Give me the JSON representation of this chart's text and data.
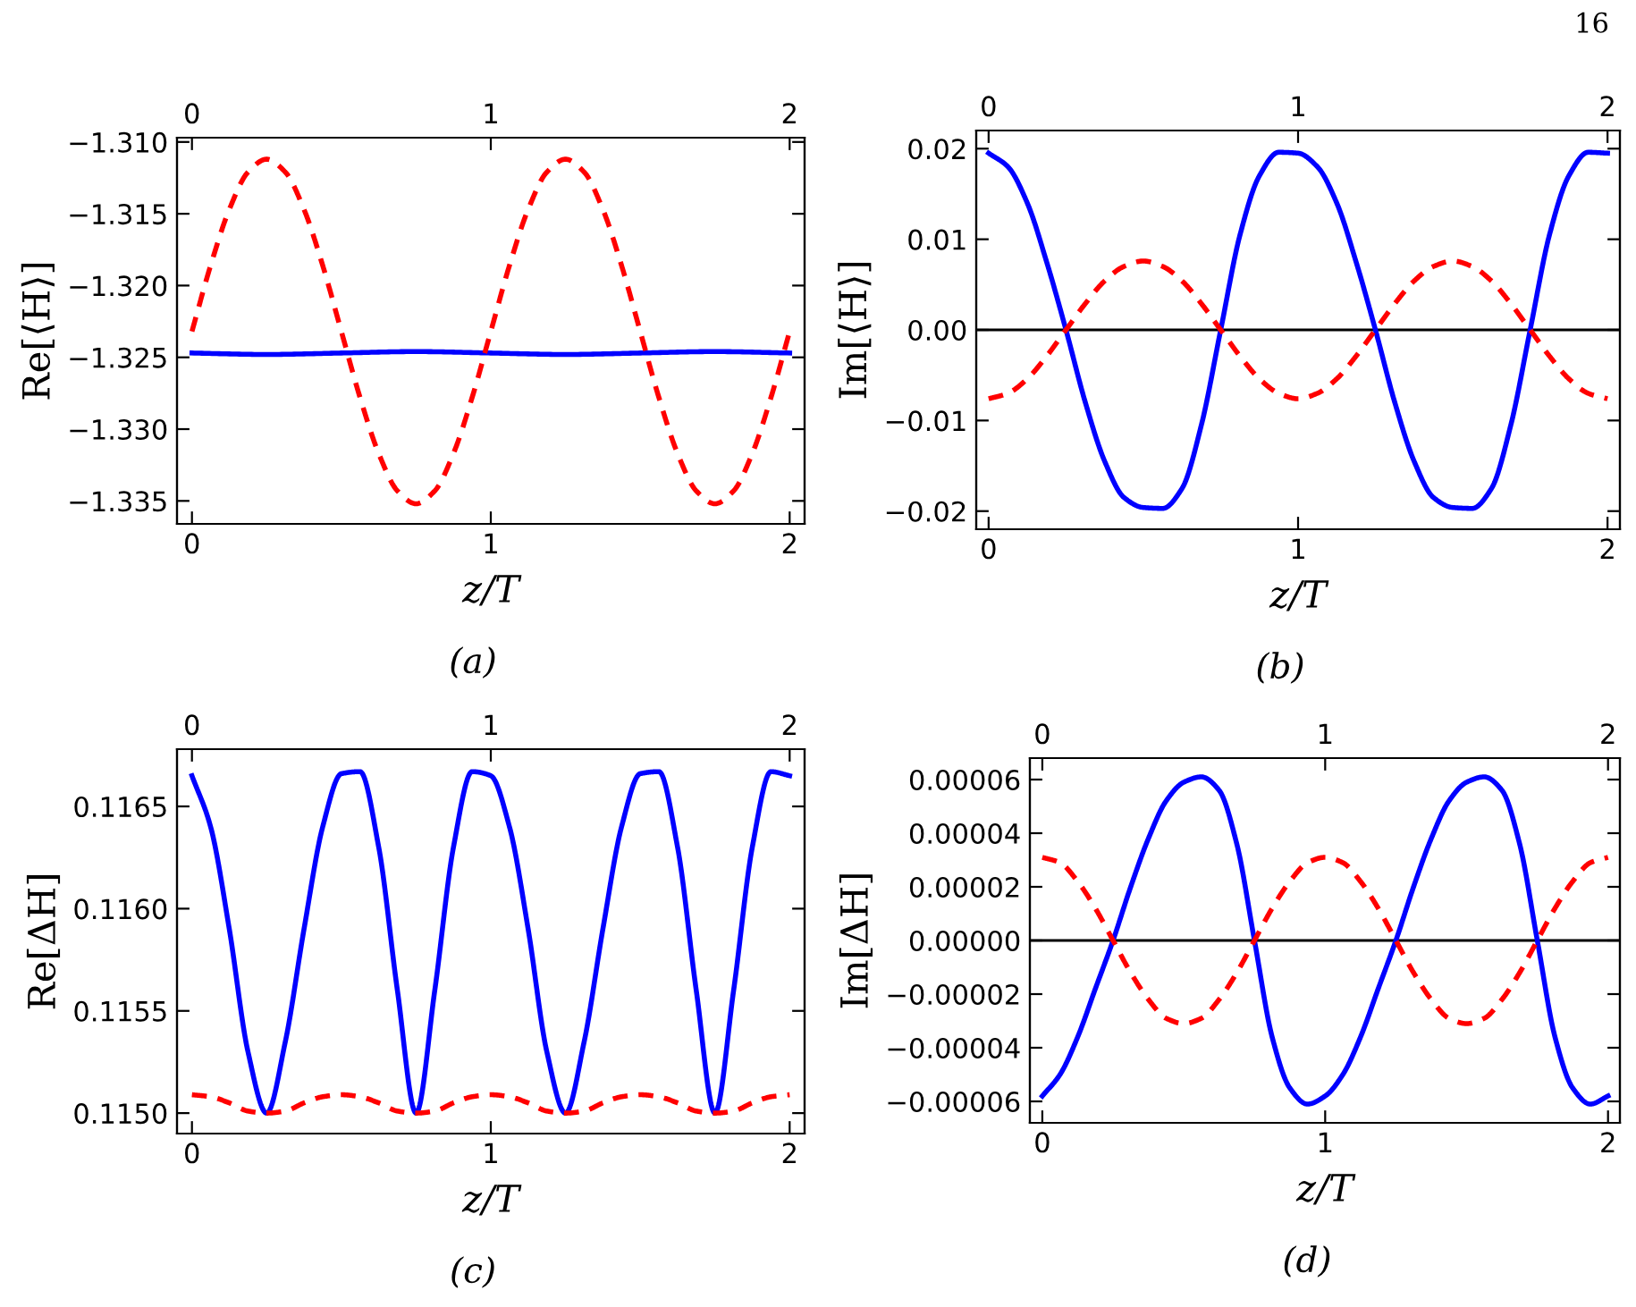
{
  "chart_data": [
    {
      "type": "line",
      "xlabel": "z/T",
      "ylabel": "Re[⟨H⟩]",
      "annotations": [
        "(a)",
        "16"
      ],
      "xlim": [
        -0.05,
        2.05
      ],
      "xticks": [
        0,
        1,
        2
      ],
      "x2lim": [
        -0.05,
        2.05
      ],
      "x2ticks": [
        0,
        1,
        2
      ],
      "ylim": [
        -1.3366,
        -1.3097
      ],
      "yticks": [
        {
          "value": -1.335,
          "label": "−1.335"
        },
        {
          "value": -1.33,
          "label": "−1.330"
        },
        {
          "value": -1.325,
          "label": "−1.325"
        },
        {
          "value": -1.32,
          "label": "−1.320"
        },
        {
          "value": -1.315,
          "label": "−1.315"
        },
        {
          "value": -1.31,
          "label": "−1.310"
        }
      ],
      "grid": false,
      "legend": false,
      "series": [
        {
          "color": "#0000ff",
          "line_style": "solid",
          "x": [
            0,
            0.25,
            0.5,
            0.75,
            1,
            1.25,
            1.5,
            1.75,
            2
          ],
          "values": [
            -1.3247,
            -1.3248,
            -1.3247,
            -1.3246,
            -1.3247,
            -1.3248,
            -1.3247,
            -1.3246,
            -1.3247
          ]
        },
        {
          "color": "#ff0000",
          "line_style": "dashed",
          "x": [
            0,
            0.0625,
            0.125,
            0.1875,
            0.25,
            0.3125,
            0.375,
            0.4375,
            0.5,
            0.5625,
            0.625,
            0.6875,
            0.75,
            0.8125,
            0.875,
            0.9375,
            1,
            1.0625,
            1.125,
            1.1875,
            1.25,
            1.3125,
            1.375,
            1.4375,
            1.5,
            1.5625,
            1.625,
            1.6875,
            1.75,
            1.8125,
            1.875,
            1.9375,
            2
          ],
          "values": [
            -1.3232,
            -1.3186,
            -1.3147,
            -1.3121,
            -1.3112,
            -1.3121,
            -1.3147,
            -1.3186,
            -1.3232,
            -1.3278,
            -1.3317,
            -1.3343,
            -1.3352,
            -1.3343,
            -1.3317,
            -1.3278,
            -1.3232,
            -1.3186,
            -1.3147,
            -1.3121,
            -1.3112,
            -1.3121,
            -1.3147,
            -1.3186,
            -1.3232,
            -1.3278,
            -1.3317,
            -1.3343,
            -1.3352,
            -1.3343,
            -1.3317,
            -1.3278,
            -1.3232
          ]
        }
      ]
    },
    {
      "type": "line",
      "xlabel": "z/T",
      "ylabel": "Im[⟨H⟩]",
      "annotations": [
        "(b)"
      ],
      "xlim": [
        -0.04,
        2.04
      ],
      "xticks": [
        0,
        1,
        2
      ],
      "x2lim": [
        -0.04,
        2.04
      ],
      "x2ticks": [
        0,
        1,
        2
      ],
      "ylim": [
        -0.022,
        0.022
      ],
      "yticks": [
        {
          "value": -0.02,
          "label": "−0.02"
        },
        {
          "value": -0.01,
          "label": "−0.01"
        },
        {
          "value": 0,
          "label": "0.00"
        },
        {
          "value": 0.01,
          "label": "0.01"
        },
        {
          "value": 0.02,
          "label": "0.02"
        }
      ],
      "grid": false,
      "legend": false,
      "ref_lines": [
        {
          "axis": "y",
          "value": 0,
          "color": "#000000"
        }
      ],
      "series": [
        {
          "color": "#0000ff",
          "line_style": "solid",
          "x": [
            0,
            0.0625,
            0.125,
            0.1875,
            0.25,
            0.3125,
            0.375,
            0.4375,
            0.5,
            0.5625,
            0.625,
            0.6875,
            0.75,
            0.8125,
            0.875,
            0.9375,
            1,
            1.0625,
            1.125,
            1.1875,
            1.25,
            1.3125,
            1.375,
            1.4375,
            1.5,
            1.5625,
            1.625,
            1.6875,
            1.75,
            1.8125,
            1.875,
            1.9375,
            2
          ],
          "values": [
            0.0195,
            0.018,
            0.014,
            0.0075,
            0,
            -0.008,
            -0.0145,
            -0.0185,
            -0.0196,
            -0.0197,
            -0.0175,
            -0.0105,
            0,
            0.0105,
            0.017,
            0.0196,
            0.0195,
            0.018,
            0.014,
            0.0075,
            0,
            -0.008,
            -0.0145,
            -0.0185,
            -0.0196,
            -0.0197,
            -0.0175,
            -0.0105,
            0,
            0.0105,
            0.017,
            0.0196,
            0.0195
          ]
        },
        {
          "color": "#ff0000",
          "line_style": "dashed",
          "x": [
            0,
            0.0625,
            0.125,
            0.1875,
            0.25,
            0.3125,
            0.375,
            0.4375,
            0.5,
            0.5625,
            0.625,
            0.6875,
            0.75,
            0.8125,
            0.875,
            0.9375,
            1,
            1.0625,
            1.125,
            1.1875,
            1.25,
            1.3125,
            1.375,
            1.4375,
            1.5,
            1.5625,
            1.625,
            1.6875,
            1.75,
            1.8125,
            1.875,
            1.9375,
            2
          ],
          "values": [
            -0.0076,
            -0.007,
            -0.0054,
            -0.0029,
            0,
            0.0029,
            0.0054,
            0.007,
            0.0076,
            0.007,
            0.0054,
            0.0029,
            0,
            -0.0029,
            -0.0054,
            -0.007,
            -0.0076,
            -0.007,
            -0.0054,
            -0.0029,
            0,
            0.0029,
            0.0054,
            0.007,
            0.0076,
            0.007,
            0.0054,
            0.0029,
            0,
            -0.0029,
            -0.0054,
            -0.007,
            -0.0076
          ]
        }
      ]
    },
    {
      "type": "line",
      "xlabel": "z/T",
      "ylabel": "Re[ΔH]",
      "annotations": [
        "(c)"
      ],
      "xlim": [
        -0.05,
        2.05
      ],
      "xticks": [
        0,
        1,
        2
      ],
      "x2lim": [
        -0.05,
        2.05
      ],
      "x2ticks": [
        0,
        1,
        2
      ],
      "ylim": [
        0.1149,
        0.11678
      ],
      "yticks": [
        {
          "value": 0.115,
          "label": "0.1150"
        },
        {
          "value": 0.1155,
          "label": "0.1155"
        },
        {
          "value": 0.116,
          "label": "0.1160"
        },
        {
          "value": 0.1165,
          "label": "0.1165"
        }
      ],
      "grid": false,
      "legend": false,
      "series": [
        {
          "color": "#0000ff",
          "line_style": "solid",
          "x": [
            0,
            0.0625,
            0.125,
            0.1875,
            0.25,
            0.3125,
            0.375,
            0.4375,
            0.5,
            0.5625,
            0.625,
            0.6875,
            0.75,
            0.8125,
            0.875,
            0.9375,
            1,
            1.0625,
            1.125,
            1.1875,
            1.25,
            1.3125,
            1.375,
            1.4375,
            1.5,
            1.5625,
            1.625,
            1.6875,
            1.75,
            1.8125,
            1.875,
            1.9375,
            2
          ],
          "values": [
            0.11665,
            0.1164,
            0.1159,
            0.1153,
            0.115,
            0.11535,
            0.1159,
            0.1164,
            0.11666,
            0.11667,
            0.1163,
            0.1156,
            0.115,
            0.1156,
            0.1163,
            0.11667,
            0.11665,
            0.1164,
            0.1159,
            0.1153,
            0.115,
            0.11535,
            0.1159,
            0.1164,
            0.11666,
            0.11667,
            0.1163,
            0.1156,
            0.115,
            0.1156,
            0.1163,
            0.11667,
            0.11665
          ]
        },
        {
          "color": "#ff0000",
          "line_style": "dashed",
          "x": [
            0,
            0.0625,
            0.125,
            0.1875,
            0.25,
            0.3125,
            0.375,
            0.4375,
            0.5,
            0.5625,
            0.625,
            0.6875,
            0.75,
            0.8125,
            0.875,
            0.9375,
            1,
            1.0625,
            1.125,
            1.1875,
            1.25,
            1.3125,
            1.375,
            1.4375,
            1.5,
            1.5625,
            1.625,
            1.6875,
            1.75,
            1.8125,
            1.875,
            1.9375,
            2
          ],
          "values": [
            0.11509,
            0.11508,
            0.11505,
            0.11501,
            0.115,
            0.11501,
            0.11505,
            0.11508,
            0.11509,
            0.11508,
            0.11505,
            0.11501,
            0.115,
            0.11501,
            0.11505,
            0.11508,
            0.11509,
            0.11508,
            0.11505,
            0.11501,
            0.115,
            0.11501,
            0.11505,
            0.11508,
            0.11509,
            0.11508,
            0.11505,
            0.11501,
            0.115,
            0.11501,
            0.11505,
            0.11508,
            0.11509
          ]
        }
      ]
    },
    {
      "type": "line",
      "xlabel": "z/T",
      "ylabel": "Im[ΔH]",
      "annotations": [
        "(d)"
      ],
      "xlim": [
        -0.044,
        2.042
      ],
      "xticks": [
        0,
        1,
        2
      ],
      "x2lim": [
        -0.044,
        2.042
      ],
      "x2ticks": [
        0,
        1,
        2
      ],
      "ylim": [
        -6.8e-05,
        6.8e-05
      ],
      "yticks": [
        {
          "value": -6e-05,
          "label": "−0.00006"
        },
        {
          "value": -4e-05,
          "label": "−0.00004"
        },
        {
          "value": -2e-05,
          "label": "−0.00002"
        },
        {
          "value": 0,
          "label": "0.00000"
        },
        {
          "value": 2e-05,
          "label": "0.00002"
        },
        {
          "value": 4e-05,
          "label": "0.00004"
        },
        {
          "value": 6e-05,
          "label": "0.00006"
        }
      ],
      "grid": false,
      "legend": false,
      "ref_lines": [
        {
          "axis": "y",
          "value": 0,
          "color": "#000000"
        }
      ],
      "series": [
        {
          "color": "#0000ff",
          "line_style": "solid",
          "x": [
            0,
            0.0625,
            0.125,
            0.1875,
            0.25,
            0.3125,
            0.375,
            0.4375,
            0.5,
            0.5625,
            0.625,
            0.6875,
            0.75,
            0.8125,
            0.875,
            0.9375,
            1,
            1.0625,
            1.125,
            1.1875,
            1.25,
            1.3125,
            1.375,
            1.4375,
            1.5,
            1.5625,
            1.625,
            1.6875,
            1.75,
            1.8125,
            1.875,
            1.9375,
            2
          ],
          "values": [
            -5.8e-05,
            -5e-05,
            -3.6e-05,
            -1.8e-05,
            0,
            2e-05,
            3.8e-05,
            5.2e-05,
            5.9e-05,
            6.1e-05,
            5.6e-05,
            3.6e-05,
            0,
            -3.6e-05,
            -5.5e-05,
            -6.1e-05,
            -5.8e-05,
            -5e-05,
            -3.6e-05,
            -1.8e-05,
            0,
            2e-05,
            3.8e-05,
            5.2e-05,
            5.9e-05,
            6.1e-05,
            5.6e-05,
            3.6e-05,
            0,
            -3.6e-05,
            -5.5e-05,
            -6.1e-05,
            -5.8e-05
          ]
        },
        {
          "color": "#ff0000",
          "line_style": "dashed",
          "x": [
            0,
            0.0625,
            0.125,
            0.1875,
            0.25,
            0.3125,
            0.375,
            0.4375,
            0.5,
            0.5625,
            0.625,
            0.6875,
            0.75,
            0.8125,
            0.875,
            0.9375,
            1,
            1.0625,
            1.125,
            1.1875,
            1.25,
            1.3125,
            1.375,
            1.4375,
            1.5,
            1.5625,
            1.625,
            1.6875,
            1.75,
            1.8125,
            1.875,
            1.9375,
            2
          ],
          "values": [
            3.1e-05,
            2.9e-05,
            2.2e-05,
            1.2e-05,
            0,
            -1.2e-05,
            -2.2e-05,
            -2.9e-05,
            -3.1e-05,
            -2.9e-05,
            -2.2e-05,
            -1.2e-05,
            0,
            1.2e-05,
            2.2e-05,
            2.9e-05,
            3.1e-05,
            2.9e-05,
            2.2e-05,
            1.2e-05,
            0,
            -1.2e-05,
            -2.2e-05,
            -2.9e-05,
            -3.1e-05,
            -2.9e-05,
            -2.2e-05,
            -1.2e-05,
            0,
            1.2e-05,
            2.2e-05,
            2.9e-05,
            3.1e-05
          ]
        }
      ]
    }
  ]
}
